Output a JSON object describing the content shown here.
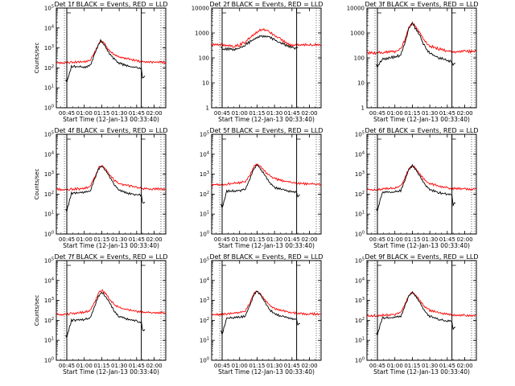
{
  "figure": {
    "background": "#ffffff",
    "event_color": "#000000",
    "lld_color": "#ff0000",
    "axis_color": "#000000"
  },
  "chart_data": [
    {
      "type": "line",
      "title": "Det 1f BLACK = Events, RED = LLD",
      "xlabel": "Start Time (12-Jan-13 00:33:40)",
      "ylabel": "Counts/sec",
      "xlim": [
        "00:36",
        "02:10"
      ],
      "x_tick_labels": [
        "00:45",
        "01:00",
        "01:15",
        "01:30",
        "01:45",
        "02:00"
      ],
      "y_scale": "log",
      "ylim": [
        1,
        100000
      ],
      "y_tick_labels": [
        "10^0",
        "10^1",
        "10^2",
        "10^3",
        "10^4",
        "10^5"
      ],
      "markers": [
        "00:45",
        "01:49"
      ],
      "series": [
        {
          "name": "LLD",
          "color": "#ff0000",
          "x": [
            "00:36",
            "00:44",
            "00:49",
            "01:00",
            "01:05",
            "01:09",
            "01:12",
            "01:14",
            "01:17",
            "01:20",
            "01:25",
            "01:30",
            "01:38",
            "01:45",
            "01:50",
            "02:00",
            "02:10"
          ],
          "y": [
            180,
            180,
            190,
            200,
            230,
            600,
            1500,
            2200,
            1800,
            900,
            500,
            350,
            280,
            230,
            200,
            190,
            190
          ]
        },
        {
          "name": "Events",
          "color": "#000000",
          "x": [
            "00:44",
            "00:45",
            "00:49",
            "01:00",
            "01:05",
            "01:09",
            "01:12",
            "01:14",
            "01:17",
            "01:20",
            "01:25",
            "01:30",
            "01:38",
            "01:45",
            "01:49",
            "01:50",
            "01:52"
          ],
          "y": [
            25,
            20,
            120,
            110,
            130,
            500,
            1400,
            2300,
            1600,
            700,
            300,
            170,
            120,
            100,
            90,
            30,
            40
          ]
        }
      ]
    },
    {
      "type": "line",
      "title": "Det 2f BLACK = Events, RED = LLD",
      "xlabel": "Start Time (12-Jan-13 00:33:40)",
      "ylabel": "",
      "xlim": [
        "00:36",
        "02:10"
      ],
      "x_tick_labels": [
        "00:45",
        "01:00",
        "01:15",
        "01:30",
        "01:45",
        "02:00"
      ],
      "y_scale": "log",
      "ylim": [
        1,
        10000
      ],
      "y_tick_labels": [
        "1",
        "10",
        "100",
        "1000",
        "10000"
      ],
      "markers": [
        "00:45",
        "01:49"
      ],
      "series": [
        {
          "name": "LLD",
          "color": "#ff0000",
          "x": [
            "00:36",
            "00:45",
            "00:55",
            "01:00",
            "01:05",
            "01:10",
            "01:15",
            "01:20",
            "01:25",
            "01:30",
            "01:35",
            "01:40",
            "01:45",
            "01:50",
            "02:00",
            "02:10"
          ],
          "y": [
            350,
            340,
            300,
            330,
            450,
            700,
            1100,
            1450,
            1200,
            800,
            550,
            400,
            330,
            320,
            330,
            340
          ]
        },
        {
          "name": "Events",
          "color": "#000000",
          "x": [
            "00:44",
            "00:45",
            "00:50",
            "00:55",
            "01:00",
            "01:05",
            "01:10",
            "01:15",
            "01:20",
            "01:25",
            "01:30",
            "01:35",
            "01:40",
            "01:45",
            "01:49",
            "01:50"
          ],
          "y": [
            260,
            230,
            230,
            210,
            250,
            330,
            470,
            650,
            770,
            700,
            520,
            400,
            320,
            270,
            250,
            250
          ]
        }
      ]
    },
    {
      "type": "line",
      "title": "Det 3f BLACK = Events, RED = LLD",
      "xlabel": "Start Time (12-Jan-13 00:33:40)",
      "ylabel": "",
      "xlim": [
        "00:36",
        "02:10"
      ],
      "x_tick_labels": [
        "00:45",
        "01:00",
        "01:15",
        "01:30",
        "01:45",
        "02:00"
      ],
      "y_scale": "log",
      "ylim": [
        1,
        10000
      ],
      "y_tick_labels": [
        "1",
        "10",
        "100",
        "1000",
        "10000"
      ],
      "markers": [
        "00:45",
        "01:49"
      ],
      "series": [
        {
          "name": "LLD",
          "color": "#ff0000",
          "x": [
            "00:36",
            "00:44",
            "00:50",
            "01:00",
            "01:05",
            "01:09",
            "01:12",
            "01:15",
            "01:18",
            "01:22",
            "01:26",
            "01:30",
            "01:38",
            "01:45",
            "01:50",
            "02:00",
            "02:10"
          ],
          "y": [
            160,
            160,
            170,
            180,
            220,
            600,
            1700,
            2500,
            1800,
            900,
            450,
            300,
            230,
            190,
            170,
            180,
            180
          ]
        },
        {
          "name": "Events",
          "color": "#000000",
          "x": [
            "00:44",
            "00:45",
            "00:49",
            "01:00",
            "01:05",
            "01:09",
            "01:12",
            "01:15",
            "01:18",
            "01:22",
            "01:26",
            "01:30",
            "01:38",
            "01:45",
            "01:49",
            "01:50",
            "01:52"
          ],
          "y": [
            60,
            45,
            90,
            110,
            130,
            450,
            1500,
            2300,
            1500,
            650,
            260,
            150,
            100,
            80,
            70,
            55,
            60
          ]
        }
      ]
    },
    {
      "type": "line",
      "title": "Det 4f BLACK = Events, RED = LLD",
      "xlabel": "Start Time (12-Jan-13 00:33:40)",
      "ylabel": "Counts/sec",
      "xlim": [
        "00:36",
        "02:10"
      ],
      "x_tick_labels": [
        "00:45",
        "01:00",
        "01:15",
        "01:30",
        "01:45",
        "02:00"
      ],
      "y_scale": "log",
      "ylim": [
        1,
        100000
      ],
      "y_tick_labels": [
        "10^0",
        "10^1",
        "10^2",
        "10^3",
        "10^4",
        "10^5"
      ],
      "markers": [
        "00:45",
        "01:49"
      ],
      "series": [
        {
          "name": "LLD",
          "color": "#ff0000",
          "x": [
            "00:36",
            "00:44",
            "00:49",
            "01:00",
            "01:05",
            "01:09",
            "01:12",
            "01:15",
            "01:18",
            "01:22",
            "01:26",
            "01:30",
            "01:38",
            "01:45",
            "01:50",
            "02:00",
            "02:10"
          ],
          "y": [
            170,
            170,
            180,
            190,
            240,
            700,
            2000,
            2800,
            1900,
            900,
            480,
            340,
            260,
            220,
            190,
            180,
            180
          ]
        },
        {
          "name": "Events",
          "color": "#000000",
          "x": [
            "00:44",
            "00:45",
            "00:49",
            "01:00",
            "01:05",
            "01:09",
            "01:12",
            "01:15",
            "01:18",
            "01:22",
            "01:26",
            "01:30",
            "01:38",
            "01:45",
            "01:49",
            "01:50",
            "01:52"
          ],
          "y": [
            20,
            15,
            110,
            120,
            140,
            550,
            1700,
            2700,
            1700,
            700,
            280,
            160,
            110,
            95,
            90,
            35,
            40
          ]
        }
      ]
    },
    {
      "type": "line",
      "title": "Det 5f BLACK = Events, RED = LLD",
      "xlabel": "Start Time (12-Jan-13 00:33:40)",
      "ylabel": "",
      "xlim": [
        "00:36",
        "02:10"
      ],
      "x_tick_labels": [
        "00:45",
        "01:00",
        "01:15",
        "01:30",
        "01:45",
        "02:00"
      ],
      "y_scale": "log",
      "ylim": [
        1,
        100000
      ],
      "y_tick_labels": [
        "10^0",
        "10^1",
        "10^2",
        "10^3",
        "10^4",
        "10^5"
      ],
      "markers": [
        "00:45",
        "01:49"
      ],
      "series": [
        {
          "name": "LLD",
          "color": "#ff0000",
          "x": [
            "00:36",
            "00:44",
            "00:49",
            "01:00",
            "01:05",
            "01:09",
            "01:12",
            "01:15",
            "01:18",
            "01:22",
            "01:26",
            "01:30",
            "01:38",
            "01:45",
            "01:50",
            "02:00",
            "02:10"
          ],
          "y": [
            300,
            300,
            320,
            380,
            450,
            900,
            2300,
            3300,
            2400,
            1300,
            800,
            600,
            460,
            380,
            340,
            320,
            310
          ]
        },
        {
          "name": "Events",
          "color": "#000000",
          "x": [
            "00:44",
            "00:45",
            "00:49",
            "01:00",
            "01:05",
            "01:09",
            "01:12",
            "01:15",
            "01:18",
            "01:22",
            "01:26",
            "01:30",
            "01:38",
            "01:45",
            "01:49",
            "01:50",
            "01:52"
          ],
          "y": [
            30,
            20,
            140,
            150,
            180,
            600,
            1800,
            2900,
            1900,
            800,
            350,
            220,
            160,
            130,
            120,
            80,
            90
          ]
        }
      ]
    },
    {
      "type": "line",
      "title": "Det 6f BLACK = Events, RED = LLD",
      "xlabel": "Start Time (12-Jan-13 00:33:40)",
      "ylabel": "",
      "xlim": [
        "00:36",
        "02:10"
      ],
      "x_tick_labels": [
        "00:45",
        "01:00",
        "01:15",
        "01:30",
        "01:45",
        "02:00"
      ],
      "y_scale": "log",
      "ylim": [
        1,
        100000
      ],
      "y_tick_labels": [
        "10^0",
        "10^1",
        "10^2",
        "10^3",
        "10^4",
        "10^5"
      ],
      "markers": [
        "00:45",
        "01:49"
      ],
      "series": [
        {
          "name": "LLD",
          "color": "#ff0000",
          "x": [
            "00:36",
            "00:44",
            "00:49",
            "01:00",
            "01:05",
            "01:09",
            "01:12",
            "01:15",
            "01:18",
            "01:22",
            "01:26",
            "01:30",
            "01:38",
            "01:45",
            "01:50",
            "02:00",
            "02:10"
          ],
          "y": [
            170,
            170,
            180,
            200,
            250,
            700,
            1900,
            2700,
            1900,
            900,
            480,
            330,
            250,
            210,
            190,
            180,
            180
          ]
        },
        {
          "name": "Events",
          "color": "#000000",
          "x": [
            "00:44",
            "00:45",
            "00:49",
            "01:00",
            "01:05",
            "01:09",
            "01:12",
            "01:15",
            "01:18",
            "01:22",
            "01:26",
            "01:30",
            "01:38",
            "01:45",
            "01:49",
            "01:50",
            "01:52"
          ],
          "y": [
            20,
            15,
            120,
            130,
            150,
            550,
            1700,
            2600,
            1700,
            700,
            290,
            170,
            120,
            100,
            95,
            30,
            35
          ]
        }
      ]
    },
    {
      "type": "line",
      "title": "Det 7f BLACK = Events, RED = LLD",
      "xlabel": "Start Time (12-Jan-13 00:33:40)",
      "ylabel": "Counts/sec",
      "xlim": [
        "00:36",
        "02:10"
      ],
      "x_tick_labels": [
        "00:45",
        "01:00",
        "01:15",
        "01:30",
        "01:45",
        "02:00"
      ],
      "y_scale": "log",
      "ylim": [
        1,
        100000
      ],
      "y_tick_labels": [
        "10^0",
        "10^1",
        "10^2",
        "10^3",
        "10^4",
        "10^5"
      ],
      "markers": [
        "00:45",
        "01:49"
      ],
      "series": [
        {
          "name": "LLD",
          "color": "#ff0000",
          "x": [
            "00:36",
            "00:44",
            "00:49",
            "01:00",
            "01:05",
            "01:09",
            "01:12",
            "01:15",
            "01:18",
            "01:22",
            "01:26",
            "01:30",
            "01:38",
            "01:45",
            "01:50",
            "02:00",
            "02:10"
          ],
          "y": [
            200,
            200,
            220,
            260,
            320,
            800,
            2200,
            3200,
            2300,
            1100,
            600,
            430,
            330,
            280,
            250,
            240,
            240
          ]
        },
        {
          "name": "Events",
          "color": "#000000",
          "x": [
            "00:44",
            "00:45",
            "00:49",
            "01:00",
            "01:05",
            "01:09",
            "01:12",
            "01:15",
            "01:18",
            "01:22",
            "01:26",
            "01:30",
            "01:38",
            "01:45",
            "01:49",
            "01:50",
            "01:52"
          ],
          "y": [
            20,
            15,
            100,
            110,
            130,
            500,
            1600,
            2700,
            1700,
            700,
            280,
            160,
            110,
            90,
            80,
            30,
            35
          ]
        }
      ]
    },
    {
      "type": "line",
      "title": "Det 8f BLACK = Events, RED = LLD",
      "xlabel": "Start Time (12-Jan-13 00:33:40)",
      "ylabel": "",
      "xlim": [
        "00:36",
        "02:10"
      ],
      "x_tick_labels": [
        "00:45",
        "01:00",
        "01:15",
        "01:30",
        "01:45",
        "02:00"
      ],
      "y_scale": "log",
      "ylim": [
        1,
        100000
      ],
      "y_tick_labels": [
        "10^0",
        "10^1",
        "10^2",
        "10^3",
        "10^4",
        "10^5"
      ],
      "markers": [
        "00:45",
        "01:49"
      ],
      "series": [
        {
          "name": "LLD",
          "color": "#ff0000",
          "x": [
            "00:36",
            "00:44",
            "00:49",
            "01:00",
            "01:05",
            "01:09",
            "01:12",
            "01:15",
            "01:18",
            "01:22",
            "01:26",
            "01:30",
            "01:38",
            "01:45",
            "01:50",
            "02:00",
            "02:10"
          ],
          "y": [
            200,
            200,
            210,
            240,
            300,
            750,
            2100,
            3000,
            2100,
            1000,
            550,
            390,
            300,
            250,
            220,
            210,
            210
          ]
        },
        {
          "name": "Events",
          "color": "#000000",
          "x": [
            "00:44",
            "00:45",
            "00:49",
            "01:00",
            "01:05",
            "01:09",
            "01:12",
            "01:15",
            "01:18",
            "01:22",
            "01:26",
            "01:30",
            "01:38",
            "01:45",
            "01:49",
            "01:50",
            "01:52"
          ],
          "y": [
            30,
            20,
            130,
            140,
            170,
            600,
            1800,
            2900,
            1900,
            800,
            340,
            210,
            150,
            120,
            110,
            60,
            70
          ]
        }
      ]
    },
    {
      "type": "line",
      "title": "Det 9f BLACK = Events, RED = LLD",
      "xlabel": "Start Time (12-Jan-13 00:33:40)",
      "ylabel": "",
      "xlim": [
        "00:36",
        "02:10"
      ],
      "x_tick_labels": [
        "00:45",
        "01:00",
        "01:15",
        "01:30",
        "01:45",
        "02:00"
      ],
      "y_scale": "log",
      "ylim": [
        1,
        100000
      ],
      "y_tick_labels": [
        "10^0",
        "10^1",
        "10^2",
        "10^3",
        "10^4",
        "10^5"
      ],
      "markers": [
        "00:45",
        "01:49"
      ],
      "series": [
        {
          "name": "LLD",
          "color": "#ff0000",
          "x": [
            "00:36",
            "00:44",
            "00:49",
            "01:00",
            "01:05",
            "01:09",
            "01:12",
            "01:15",
            "01:18",
            "01:22",
            "01:26",
            "01:30",
            "01:38",
            "01:45",
            "01:50",
            "02:00",
            "02:10"
          ],
          "y": [
            170,
            170,
            180,
            200,
            250,
            700,
            1800,
            2600,
            1800,
            850,
            450,
            320,
            240,
            200,
            180,
            180,
            180
          ]
        },
        {
          "name": "Events",
          "color": "#000000",
          "x": [
            "00:44",
            "00:45",
            "00:49",
            "01:00",
            "01:05",
            "01:09",
            "01:12",
            "01:15",
            "01:18",
            "01:22",
            "01:26",
            "01:30",
            "01:38",
            "01:45",
            "01:49",
            "01:50",
            "01:52"
          ],
          "y": [
            25,
            20,
            130,
            140,
            160,
            580,
            1700,
            2500,
            1600,
            650,
            270,
            160,
            110,
            95,
            90,
            40,
            45
          ]
        }
      ]
    }
  ]
}
